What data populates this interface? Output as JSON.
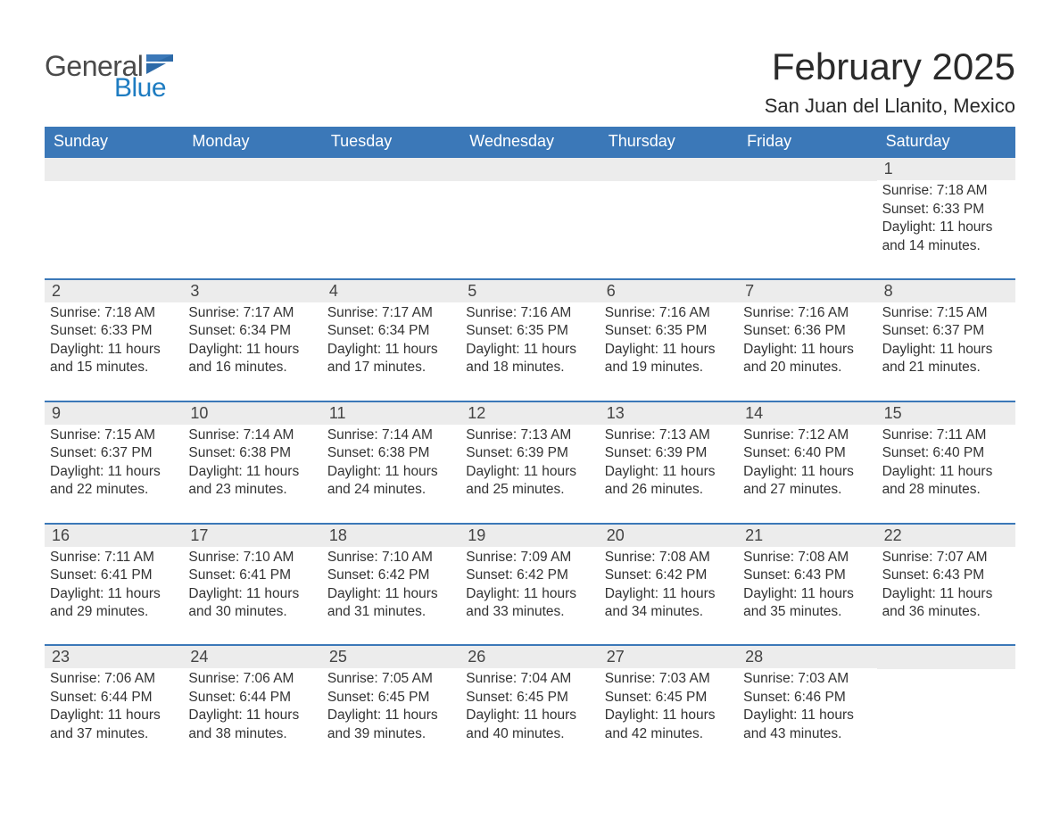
{
  "colors": {
    "header_blue": "#3b78b8",
    "logo_blue": "#1e7cc1",
    "row_gray": "#ececec",
    "text_dark": "#333333",
    "border_blue": "#3b78b8",
    "background": "#ffffff"
  },
  "logo": {
    "line1": "General",
    "line2": "Blue"
  },
  "title": {
    "month": "February 2025",
    "location": "San Juan del Llanito, Mexico"
  },
  "days_of_week": [
    "Sunday",
    "Monday",
    "Tuesday",
    "Wednesday",
    "Thursday",
    "Friday",
    "Saturday"
  ],
  "weeks": [
    [
      null,
      null,
      null,
      null,
      null,
      null,
      {
        "n": "1",
        "sunrise": "7:18 AM",
        "sunset": "6:33 PM",
        "daylight": "11 hours and 14 minutes."
      }
    ],
    [
      {
        "n": "2",
        "sunrise": "7:18 AM",
        "sunset": "6:33 PM",
        "daylight": "11 hours and 15 minutes."
      },
      {
        "n": "3",
        "sunrise": "7:17 AM",
        "sunset": "6:34 PM",
        "daylight": "11 hours and 16 minutes."
      },
      {
        "n": "4",
        "sunrise": "7:17 AM",
        "sunset": "6:34 PM",
        "daylight": "11 hours and 17 minutes."
      },
      {
        "n": "5",
        "sunrise": "7:16 AM",
        "sunset": "6:35 PM",
        "daylight": "11 hours and 18 minutes."
      },
      {
        "n": "6",
        "sunrise": "7:16 AM",
        "sunset": "6:35 PM",
        "daylight": "11 hours and 19 minutes."
      },
      {
        "n": "7",
        "sunrise": "7:16 AM",
        "sunset": "6:36 PM",
        "daylight": "11 hours and 20 minutes."
      },
      {
        "n": "8",
        "sunrise": "7:15 AM",
        "sunset": "6:37 PM",
        "daylight": "11 hours and 21 minutes."
      }
    ],
    [
      {
        "n": "9",
        "sunrise": "7:15 AM",
        "sunset": "6:37 PM",
        "daylight": "11 hours and 22 minutes."
      },
      {
        "n": "10",
        "sunrise": "7:14 AM",
        "sunset": "6:38 PM",
        "daylight": "11 hours and 23 minutes."
      },
      {
        "n": "11",
        "sunrise": "7:14 AM",
        "sunset": "6:38 PM",
        "daylight": "11 hours and 24 minutes."
      },
      {
        "n": "12",
        "sunrise": "7:13 AM",
        "sunset": "6:39 PM",
        "daylight": "11 hours and 25 minutes."
      },
      {
        "n": "13",
        "sunrise": "7:13 AM",
        "sunset": "6:39 PM",
        "daylight": "11 hours and 26 minutes."
      },
      {
        "n": "14",
        "sunrise": "7:12 AM",
        "sunset": "6:40 PM",
        "daylight": "11 hours and 27 minutes."
      },
      {
        "n": "15",
        "sunrise": "7:11 AM",
        "sunset": "6:40 PM",
        "daylight": "11 hours and 28 minutes."
      }
    ],
    [
      {
        "n": "16",
        "sunrise": "7:11 AM",
        "sunset": "6:41 PM",
        "daylight": "11 hours and 29 minutes."
      },
      {
        "n": "17",
        "sunrise": "7:10 AM",
        "sunset": "6:41 PM",
        "daylight": "11 hours and 30 minutes."
      },
      {
        "n": "18",
        "sunrise": "7:10 AM",
        "sunset": "6:42 PM",
        "daylight": "11 hours and 31 minutes."
      },
      {
        "n": "19",
        "sunrise": "7:09 AM",
        "sunset": "6:42 PM",
        "daylight": "11 hours and 33 minutes."
      },
      {
        "n": "20",
        "sunrise": "7:08 AM",
        "sunset": "6:42 PM",
        "daylight": "11 hours and 34 minutes."
      },
      {
        "n": "21",
        "sunrise": "7:08 AM",
        "sunset": "6:43 PM",
        "daylight": "11 hours and 35 minutes."
      },
      {
        "n": "22",
        "sunrise": "7:07 AM",
        "sunset": "6:43 PM",
        "daylight": "11 hours and 36 minutes."
      }
    ],
    [
      {
        "n": "23",
        "sunrise": "7:06 AM",
        "sunset": "6:44 PM",
        "daylight": "11 hours and 37 minutes."
      },
      {
        "n": "24",
        "sunrise": "7:06 AM",
        "sunset": "6:44 PM",
        "daylight": "11 hours and 38 minutes."
      },
      {
        "n": "25",
        "sunrise": "7:05 AM",
        "sunset": "6:45 PM",
        "daylight": "11 hours and 39 minutes."
      },
      {
        "n": "26",
        "sunrise": "7:04 AM",
        "sunset": "6:45 PM",
        "daylight": "11 hours and 40 minutes."
      },
      {
        "n": "27",
        "sunrise": "7:03 AM",
        "sunset": "6:45 PM",
        "daylight": "11 hours and 42 minutes."
      },
      {
        "n": "28",
        "sunrise": "7:03 AM",
        "sunset": "6:46 PM",
        "daylight": "11 hours and 43 minutes."
      },
      null
    ]
  ],
  "labels": {
    "sunrise": "Sunrise: ",
    "sunset": "Sunset: ",
    "daylight": "Daylight: "
  }
}
